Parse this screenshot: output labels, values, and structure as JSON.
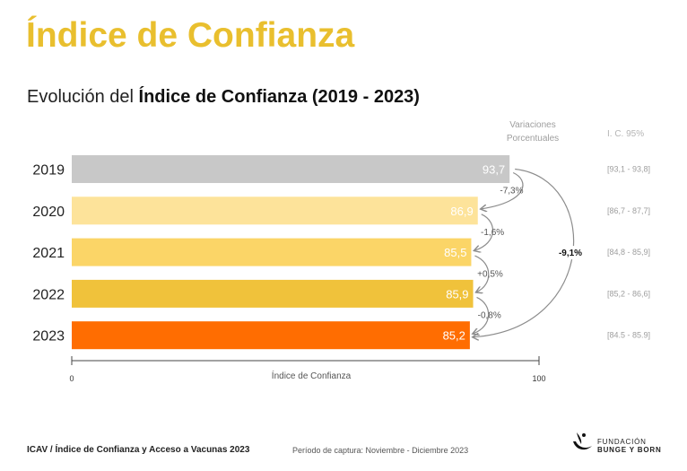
{
  "header": {
    "title": "Índice de Confianza",
    "subtitle_prefix": "Evolución del ",
    "subtitle_bold": "Índice de Confianza (2019 - 2023)"
  },
  "column_headers": {
    "variations_line1": "Variaciones",
    "variations_line2": "Porcentuales",
    "ci": "I. C. 95%"
  },
  "chart_data": {
    "type": "bar",
    "orientation": "horizontal",
    "categories": [
      "2019",
      "2020",
      "2021",
      "2022",
      "2023"
    ],
    "values": [
      93.7,
      86.9,
      85.5,
      85.9,
      85.2
    ],
    "value_labels": [
      "93,7",
      "86,9",
      "85,5",
      "85,9",
      "85,2"
    ],
    "bar_colors": [
      "#C8C8C8",
      "#FDE39A",
      "#FBD567",
      "#F0C23B",
      "#FF6D01"
    ],
    "xlabel": "Índice de Confianza",
    "xlim": [
      0,
      100
    ],
    "xticks": [
      "0",
      "100"
    ],
    "yoy_variations": [
      "-7,3%",
      "-1,6%",
      "+0,5%",
      "-0,8%"
    ],
    "total_variation": "-9,1%",
    "confidence_intervals": [
      "[93,1 - 93,8]",
      "[86,7 - 87,7]",
      "[84,8 - 85,9]",
      "[85,2 - 86,6]",
      "[84.5 - 85.9]"
    ],
    "grid": false
  },
  "footer": {
    "left": "ICAV / Índice de Confianza y Acceso a Vacunas 2023",
    "middle": "Período de captura: Noviembre - Diciembre 2023",
    "logo_line1": "FUNDACIÓN",
    "logo_line2": "BUNGE Y BORN"
  }
}
